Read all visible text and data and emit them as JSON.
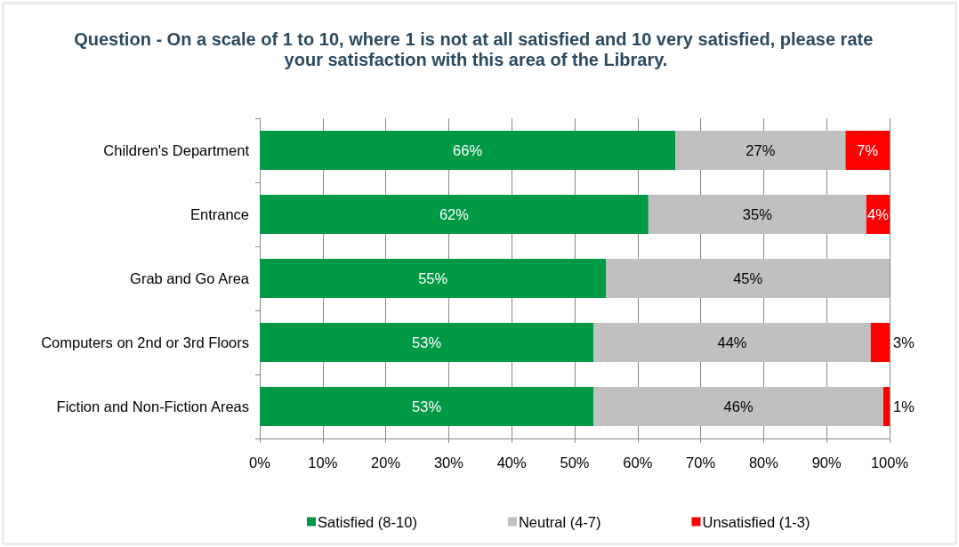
{
  "chart_data": {
    "type": "bar",
    "orientation": "horizontal",
    "stacked": true,
    "title": "Question - On a scale of 1 to 10, where 1 is not at all satisfied and 10 very satisfied, please rate your satisfaction with this area of the Library.",
    "categories": [
      "Children's Department",
      "Entrance",
      "Grab and Go Area",
      "Computers on 2nd or 3rd Floors",
      "Fiction and Non-Fiction Areas"
    ],
    "series": [
      {
        "name": "Satisfied (8-10)",
        "color": "#009a46",
        "values": [
          66,
          61.7,
          55,
          53,
          53
        ],
        "value_labels": [
          "66%",
          "62%",
          "55%",
          "53%",
          "53%"
        ]
      },
      {
        "name": "Neutral (4-7)",
        "color": "#c0c0c0",
        "values": [
          27,
          34.6,
          45,
          44,
          46
        ],
        "value_labels": [
          "27%",
          "35%",
          "45%",
          "44%",
          "46%"
        ]
      },
      {
        "name": "Unsatisfied (1-3)",
        "color": "#ff0000",
        "values": [
          7,
          3.7,
          null,
          3,
          1
        ],
        "value_labels": [
          "7%",
          "4%",
          null,
          "3%",
          "1%"
        ]
      }
    ],
    "xlim": [
      0,
      100
    ],
    "xticks": [
      {
        "value": 0,
        "label": "0%"
      },
      {
        "value": 10,
        "label": "10%"
      },
      {
        "value": 20,
        "label": "20%"
      },
      {
        "value": 30,
        "label": "30%"
      },
      {
        "value": 40,
        "label": "40%"
      },
      {
        "value": 50,
        "label": "50%"
      },
      {
        "value": 60,
        "label": "60%"
      },
      {
        "value": 70,
        "label": "70%"
      },
      {
        "value": 80,
        "label": "80%"
      },
      {
        "value": 90,
        "label": "90%"
      },
      {
        "value": 100,
        "label": "100%"
      }
    ],
    "grid": "x",
    "legend": "bottom"
  }
}
